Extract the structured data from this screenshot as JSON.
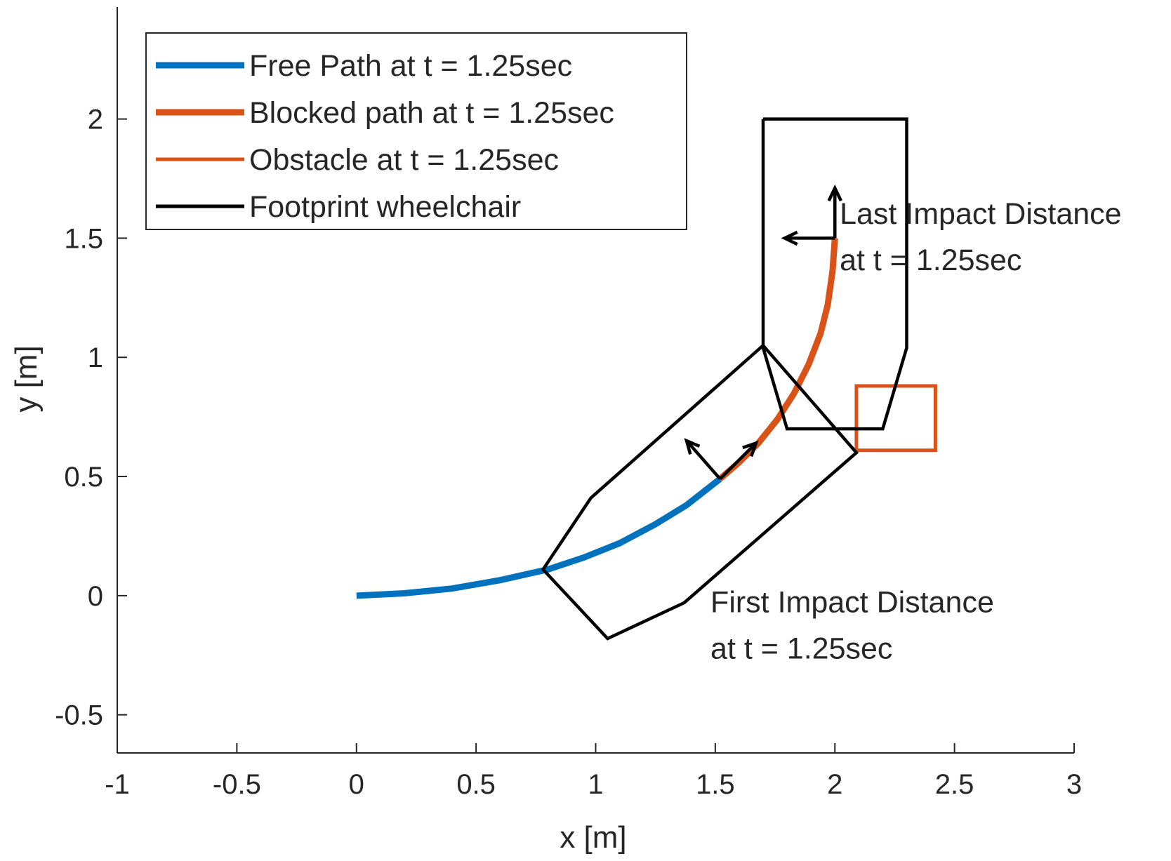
{
  "chart_data": {
    "type": "line",
    "xlabel": "x [m]",
    "ylabel": "y [m]",
    "xlim": [
      -1,
      3
    ],
    "ylim": [
      -0.66,
      2.47
    ],
    "x_ticks": [
      -1,
      -0.5,
      0,
      0.5,
      1,
      1.5,
      2,
      2.5,
      3
    ],
    "x_tick_labels": [
      "-1",
      "-0.5",
      "0",
      "0.5",
      "1",
      "1.5",
      "2",
      "2.5",
      "3"
    ],
    "y_ticks": [
      -0.5,
      0,
      0.5,
      1,
      1.5,
      2
    ],
    "y_tick_labels": [
      "-0.5",
      "0",
      "0.5",
      "1",
      "1.5",
      "2"
    ],
    "grid": false,
    "legend_position": "top-left",
    "legend": [
      {
        "label": "Free Path at t = 1.25sec",
        "color": "#0072BD",
        "style": "thick"
      },
      {
        "label": "Blocked path at t = 1.25sec",
        "color": "#D95319",
        "style": "thick"
      },
      {
        "label": "Obstacle at t = 1.25sec",
        "color": "#D95319",
        "style": "thin"
      },
      {
        "label": "Footprint wheelchair",
        "color": "#000000",
        "style": "thin"
      }
    ],
    "series": [
      {
        "name": "Free Path at t = 1.25sec",
        "color": "#0072BD",
        "points": [
          [
            0,
            0
          ],
          [
            0.2,
            0.01
          ],
          [
            0.4,
            0.03
          ],
          [
            0.6,
            0.065
          ],
          [
            0.8,
            0.11
          ],
          [
            0.95,
            0.16
          ],
          [
            1.1,
            0.22
          ],
          [
            1.25,
            0.3
          ],
          [
            1.38,
            0.38
          ],
          [
            1.52,
            0.49
          ]
        ]
      },
      {
        "name": "Blocked path at t = 1.25sec",
        "color": "#D95319",
        "points": [
          [
            1.52,
            0.49
          ],
          [
            1.6,
            0.56
          ],
          [
            1.68,
            0.64
          ],
          [
            1.76,
            0.74
          ],
          [
            1.83,
            0.85
          ],
          [
            1.89,
            0.97
          ],
          [
            1.94,
            1.1
          ],
          [
            1.97,
            1.22
          ],
          [
            1.99,
            1.36
          ],
          [
            2.0,
            1.5
          ]
        ]
      },
      {
        "name": "Obstacle at t = 1.25sec",
        "color": "#D95319",
        "points": [
          [
            2.09,
            0.61
          ],
          [
            2.42,
            0.61
          ],
          [
            2.42,
            0.88
          ],
          [
            2.09,
            0.88
          ],
          [
            2.09,
            0.61
          ]
        ]
      },
      {
        "name": "Footprint wheelchair",
        "color": "#000000",
        "points": [
          [
            1.7,
            2.0
          ],
          [
            2.3,
            2.0
          ],
          [
            2.3,
            1.04
          ],
          [
            2.2,
            0.7
          ],
          [
            1.8,
            0.7
          ],
          [
            1.7,
            1.04
          ],
          [
            1.7,
            2.0
          ]
        ]
      },
      {
        "name": "Footprint wheelchair",
        "color": "#000000",
        "points": [
          [
            1.7,
            1.05
          ],
          [
            2.09,
            0.6
          ],
          [
            1.37,
            -0.03
          ],
          [
            1.05,
            -0.18
          ],
          [
            0.78,
            0.11
          ],
          [
            0.98,
            0.41
          ],
          [
            1.7,
            1.05
          ]
        ]
      }
    ],
    "arrows": [
      {
        "from": [
          2.0,
          1.5
        ],
        "to": [
          2.0,
          1.71
        ]
      },
      {
        "from": [
          2.0,
          1.5
        ],
        "to": [
          1.79,
          1.5
        ]
      },
      {
        "from": [
          1.52,
          0.49
        ],
        "to": [
          1.67,
          0.64
        ]
      },
      {
        "from": [
          1.52,
          0.49
        ],
        "to": [
          1.38,
          0.65
        ]
      }
    ],
    "annotations": [
      {
        "lines": [
          "Last Impact Distance",
          "at t = 1.25sec"
        ],
        "x": 2.02,
        "y": 1.56
      },
      {
        "lines": [
          "First Impact Distance",
          "at t = 1.25sec"
        ],
        "x": 1.48,
        "y": -0.07
      }
    ]
  }
}
